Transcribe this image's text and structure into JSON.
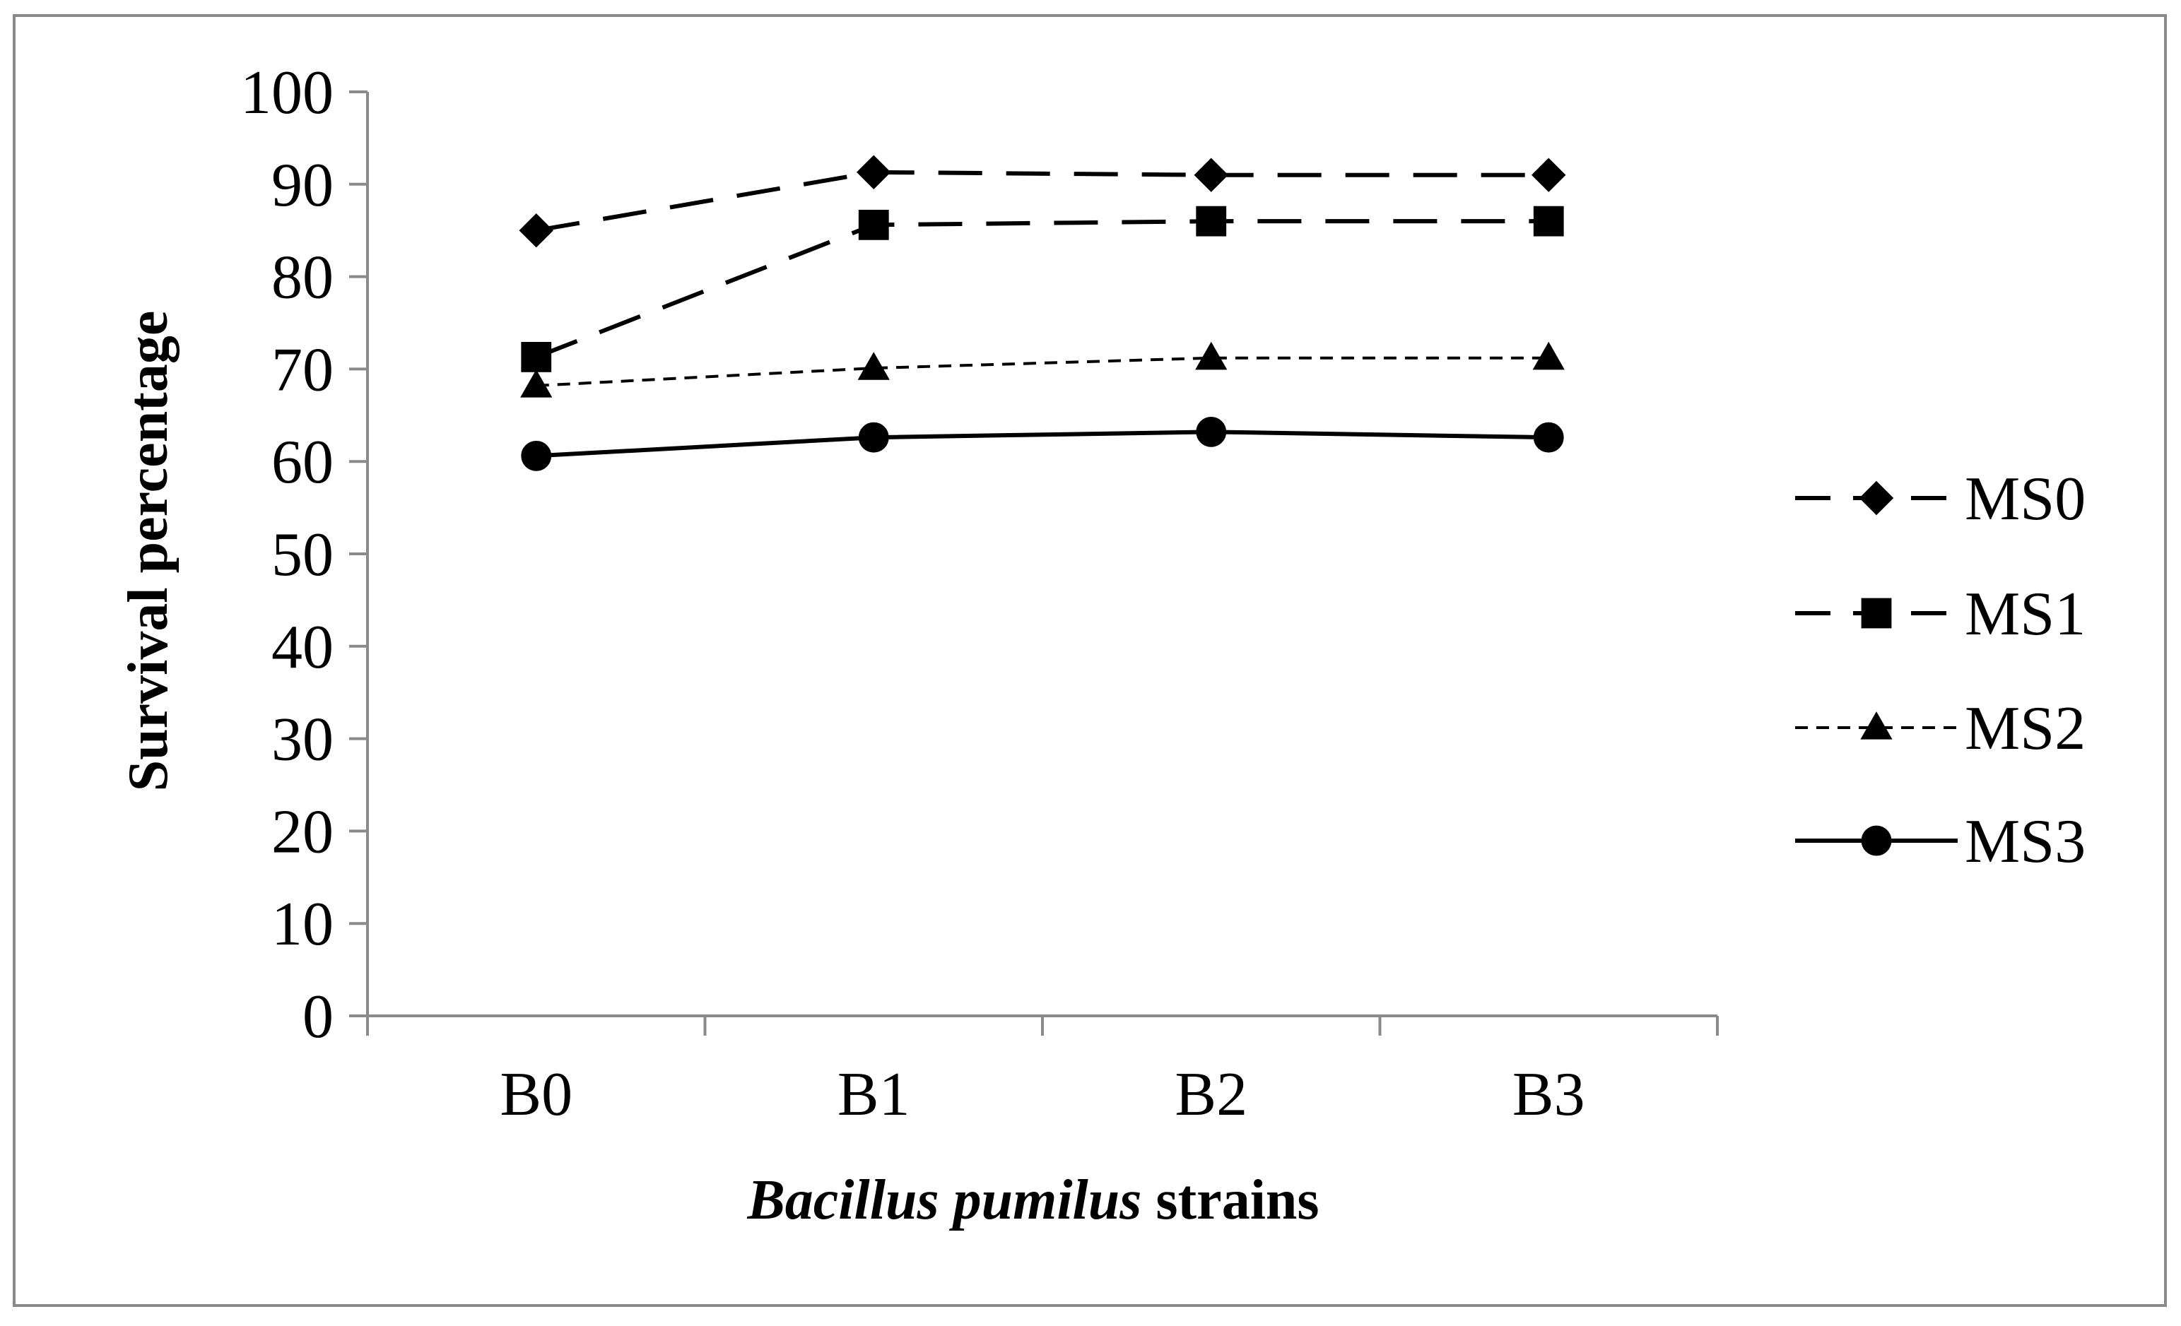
{
  "chart_data": {
    "type": "line",
    "categories": [
      "B0",
      "B1",
      "B2",
      "B3"
    ],
    "series": [
      {
        "name": "MS0",
        "values": [
          85,
          91.3,
          91,
          91
        ],
        "marker": "diamond",
        "dash": "long"
      },
      {
        "name": "MS1",
        "values": [
          71.3,
          85.6,
          86,
          86
        ],
        "marker": "square",
        "dash": "long"
      },
      {
        "name": "MS2",
        "values": [
          68.2,
          70.1,
          71.2,
          71.2
        ],
        "marker": "triangle",
        "dash": "short"
      },
      {
        "name": "MS3",
        "values": [
          60.6,
          62.6,
          63.2,
          62.6
        ],
        "marker": "circle",
        "dash": "solid"
      }
    ],
    "xlabel_italic": "Bacillus pumilus",
    "xlabel_rest": " strains",
    "ylabel": "Survival percentage",
    "ylim": [
      0,
      100
    ],
    "yticks": [
      "0",
      "10",
      "20",
      "30",
      "40",
      "50",
      "60",
      "70",
      "80",
      "90",
      "100"
    ],
    "grid": false,
    "legend_position": "right",
    "color": "#000000"
  }
}
